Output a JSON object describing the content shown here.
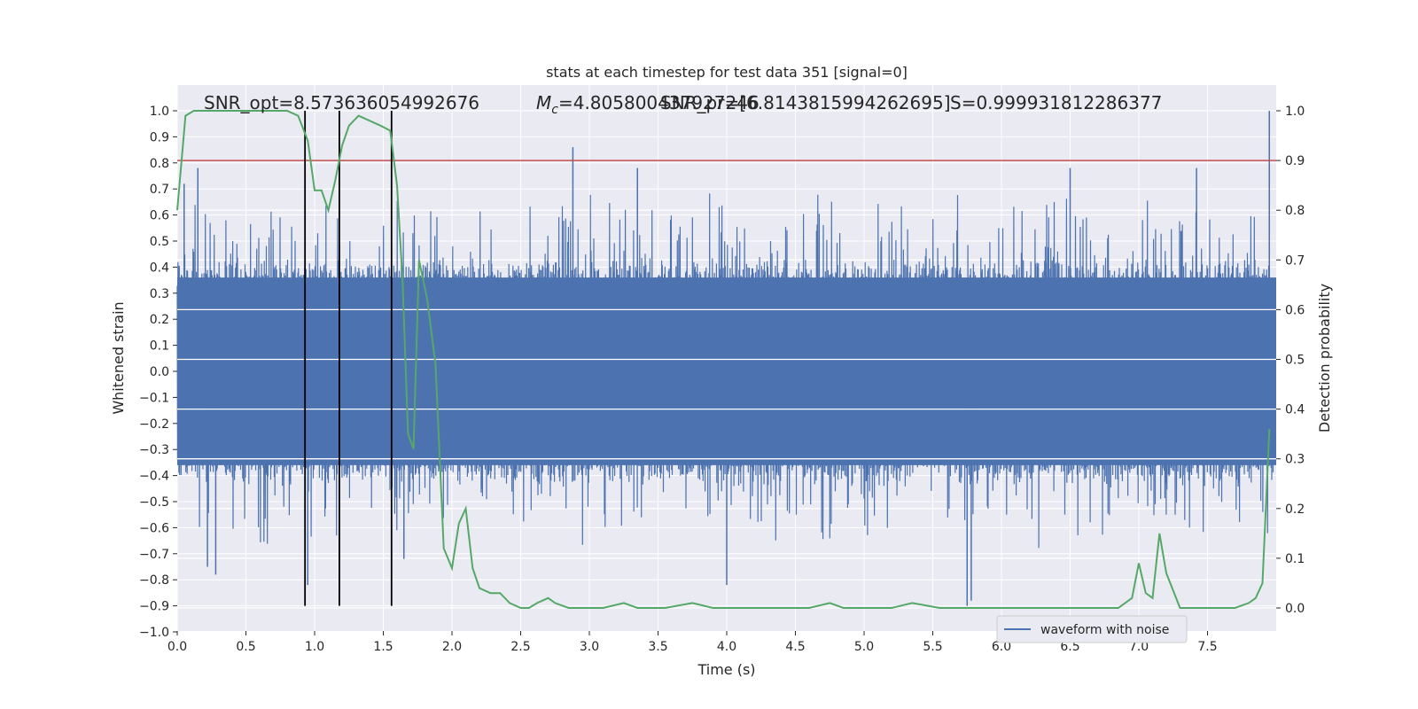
{
  "chart_data": {
    "type": "line",
    "title": "stats at each timestep for test data 351 [signal=0]",
    "xlabel": "Time (s)",
    "ylabel": "Whitened strain",
    "y2label": "Detection probability",
    "xlim": [
      0.0,
      8.0
    ],
    "ylim": [
      -1.0,
      1.0
    ],
    "y2lim": [
      -0.05,
      1.0
    ],
    "xticks": [
      "0.0",
      "0.5",
      "1.0",
      "1.5",
      "2.0",
      "2.5",
      "3.0",
      "3.5",
      "4.0",
      "4.5",
      "5.0",
      "5.5",
      "6.0",
      "6.5",
      "7.0",
      "7.5"
    ],
    "yticks": [
      "1.0",
      "0.9",
      "0.8",
      "0.7",
      "0.6",
      "0.5",
      "0.4",
      "0.3",
      "0.2",
      "0.1",
      "0.0",
      "-0.1",
      "-0.2",
      "-0.3",
      "-0.4",
      "-0.5",
      "-0.6",
      "-0.7",
      "-0.8",
      "-0.9",
      "-1.0"
    ],
    "y2ticks": [
      "1.0",
      "0.9",
      "0.8",
      "0.7",
      "0.6",
      "0.5",
      "0.4",
      "0.3",
      "0.2",
      "0.1",
      "0.0"
    ],
    "grid": true,
    "legend": {
      "position": "lower-right",
      "entries": [
        "waveform with noise"
      ]
    },
    "annotations": {
      "snr": "SNR_opt=8.573636054992676",
      "mc": "=4.805800437927246",
      "mc_symbol": "M",
      "mc_sub": "c",
      "snr_pred": "SNR_pr=[6.8143815994262695]",
      "s": "S=0.999931812286377"
    },
    "threshold": {
      "value": 0.9,
      "axis": "y2",
      "color": "#c44e52"
    },
    "vertical_lines": [
      0.93,
      1.18,
      1.56
    ],
    "series": [
      {
        "name": "waveform with noise",
        "color": "#4c72b0",
        "kind": "noise",
        "core_amplitude": 0.36,
        "peaks": [
          {
            "x": 0.05,
            "y": 0.72
          },
          {
            "x": 0.15,
            "y": 0.78
          },
          {
            "x": 0.22,
            "y": -0.75
          },
          {
            "x": 0.28,
            "y": -0.78
          },
          {
            "x": 0.95,
            "y": -0.82
          },
          {
            "x": 1.18,
            "y": -0.85
          },
          {
            "x": 1.65,
            "y": -0.72
          },
          {
            "x": 2.88,
            "y": 0.86
          },
          {
            "x": 3.35,
            "y": 0.78
          },
          {
            "x": 4.0,
            "y": -0.82
          },
          {
            "x": 5.75,
            "y": -0.9
          },
          {
            "x": 5.78,
            "y": -0.88
          },
          {
            "x": 7.95,
            "y": 1.0
          },
          {
            "x": 7.42,
            "y": 0.78
          },
          {
            "x": 6.5,
            "y": 0.78
          }
        ]
      },
      {
        "name": "",
        "color": "#55a868",
        "axis": "y2",
        "x": [
          0.0,
          0.06,
          0.12,
          0.2,
          0.3,
          0.45,
          0.6,
          0.7,
          0.8,
          0.88,
          0.95,
          1.0,
          1.05,
          1.1,
          1.15,
          1.2,
          1.25,
          1.32,
          1.4,
          1.48,
          1.55,
          1.6,
          1.64,
          1.68,
          1.72,
          1.76,
          1.82,
          1.88,
          1.94,
          2.0,
          2.05,
          2.1,
          2.15,
          2.2,
          2.28,
          2.35,
          2.42,
          2.5,
          2.56,
          2.62,
          2.7,
          2.75,
          2.85,
          3.0,
          3.1,
          3.25,
          3.35,
          3.55,
          3.75,
          3.9,
          4.0,
          4.2,
          4.4,
          4.6,
          4.75,
          4.85,
          5.0,
          5.2,
          5.35,
          5.55,
          5.8,
          6.0,
          6.3,
          6.6,
          6.85,
          6.95,
          7.0,
          7.05,
          7.1,
          7.15,
          7.2,
          7.3,
          7.45,
          7.6,
          7.7,
          7.8,
          7.85,
          7.9,
          7.95
        ],
        "y": [
          0.8,
          0.99,
          1.0,
          1.0,
          1.0,
          1.0,
          1.0,
          1.0,
          1.0,
          0.99,
          0.94,
          0.84,
          0.84,
          0.8,
          0.86,
          0.93,
          0.97,
          0.99,
          0.98,
          0.97,
          0.96,
          0.85,
          0.66,
          0.35,
          0.32,
          0.7,
          0.62,
          0.49,
          0.12,
          0.08,
          0.17,
          0.2,
          0.08,
          0.04,
          0.03,
          0.03,
          0.01,
          0.0,
          0.0,
          0.01,
          0.02,
          0.01,
          0.0,
          0.0,
          0.0,
          0.01,
          0.0,
          0.0,
          0.01,
          0.0,
          0.0,
          0.0,
          0.0,
          0.0,
          0.01,
          0.0,
          0.0,
          0.0,
          0.01,
          0.0,
          0.0,
          0.0,
          0.0,
          0.0,
          0.0,
          0.02,
          0.09,
          0.03,
          0.02,
          0.15,
          0.07,
          0.0,
          0.0,
          0.0,
          0.0,
          0.01,
          0.02,
          0.05,
          0.36
        ]
      }
    ]
  }
}
